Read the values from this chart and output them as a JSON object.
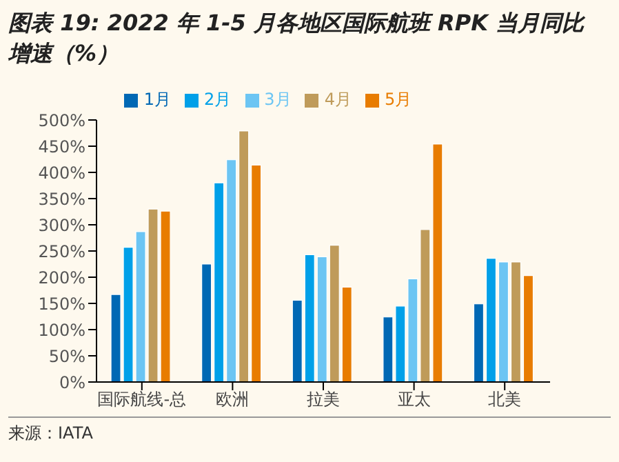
{
  "chart_data": {
    "type": "bar",
    "title": "图表 19:  2022 年 1-5 月各地区国际航班 RPK 当月同比增速（%）",
    "categories": [
      "国际航线-总",
      "欧洲",
      "拉美",
      "亚太",
      "北美"
    ],
    "series": [
      {
        "name": "1月",
        "color": "#0068b4",
        "values": [
          167,
          225,
          156,
          124,
          149
        ]
      },
      {
        "name": "2月",
        "color": "#00a0e8",
        "values": [
          257,
          380,
          243,
          145,
          236
        ]
      },
      {
        "name": "3月",
        "color": "#6cc5f3",
        "values": [
          287,
          424,
          239,
          197,
          229
        ]
      },
      {
        "name": "4月",
        "color": "#bf9b5a",
        "values": [
          330,
          479,
          261,
          291,
          229
        ]
      },
      {
        "name": "5月",
        "color": "#e87c00",
        "values": [
          326,
          414,
          181,
          454,
          203
        ]
      }
    ],
    "ylim": [
      0,
      500
    ],
    "yticks": [
      {
        "value": 0,
        "label": "0%"
      },
      {
        "value": 50,
        "label": "50%"
      },
      {
        "value": 100,
        "label": "100%"
      },
      {
        "value": 150,
        "label": "150%"
      },
      {
        "value": 200,
        "label": "200%"
      },
      {
        "value": 250,
        "label": "250%"
      },
      {
        "value": 300,
        "label": "300%"
      },
      {
        "value": 350,
        "label": "350%"
      },
      {
        "value": 400,
        "label": "400%"
      },
      {
        "value": 450,
        "label": "450%"
      },
      {
        "value": 500,
        "label": "500%"
      }
    ],
    "grid": false,
    "legend": "top",
    "annotations": [
      "来源：IATA"
    ]
  }
}
